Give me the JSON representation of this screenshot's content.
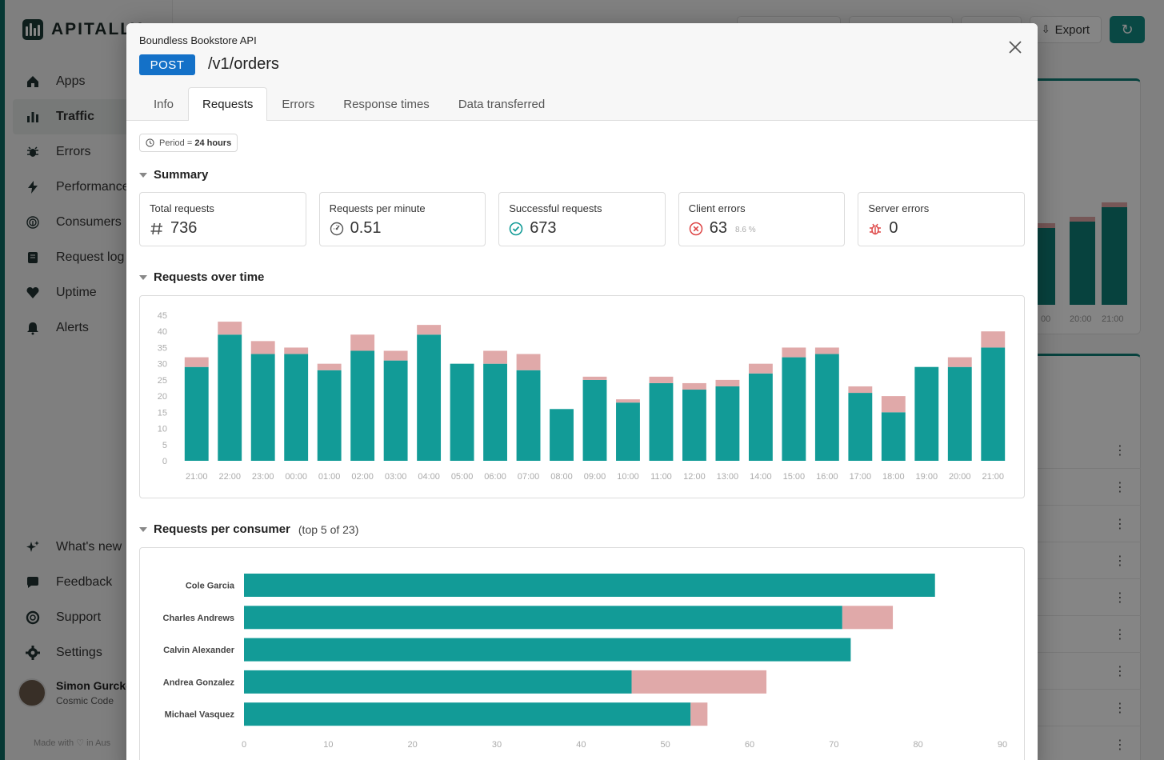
{
  "app": {
    "logo": "APITALLY",
    "nav": [
      {
        "label": "Apps",
        "icon": "home-icon"
      },
      {
        "label": "Traffic",
        "icon": "bar-chart-icon",
        "active": true
      },
      {
        "label": "Errors",
        "icon": "bug-icon"
      },
      {
        "label": "Performance",
        "icon": "bolt-icon"
      },
      {
        "label": "Consumers",
        "icon": "fingerprint-icon"
      },
      {
        "label": "Request log",
        "icon": "log-icon"
      },
      {
        "label": "Uptime",
        "icon": "heartbeat-icon"
      },
      {
        "label": "Alerts",
        "icon": "bell-icon"
      }
    ],
    "nav_bottom": [
      {
        "label": "What's new",
        "icon": "sparkles-icon"
      },
      {
        "label": "Feedback",
        "icon": "chat-icon"
      },
      {
        "label": "Support",
        "icon": "lifebuoy-icon"
      },
      {
        "label": "Settings",
        "icon": "gear-icon"
      }
    ],
    "user": {
      "name": "Simon Gurcke",
      "org": "Cosmic Code"
    },
    "made_with": "Made with ♡ in Aus",
    "export_label": "Export",
    "bg_chart_labels": [
      "00",
      "20:00",
      "21:00"
    ]
  },
  "modal": {
    "api_name": "Boundless Bookstore API",
    "method": "POST",
    "path": "/v1/orders",
    "tabs": [
      "Info",
      "Requests",
      "Errors",
      "Response times",
      "Data transferred"
    ],
    "active_tab": "Requests",
    "period_label": "Period = ",
    "period_value": "24 hours",
    "sections": {
      "summary": "Summary",
      "requests_over_time": "Requests over time",
      "requests_per_consumer": "Requests per consumer",
      "requests_per_consumer_sub": "(top 5 of 23)"
    },
    "stats": [
      {
        "label": "Total requests",
        "value": "736",
        "icon": "hash-icon",
        "suffix": ""
      },
      {
        "label": "Requests per minute",
        "value": "0.51",
        "icon": "gauge-icon",
        "suffix": ""
      },
      {
        "label": "Successful requests",
        "value": "673",
        "icon": "check-circle-icon",
        "suffix": ""
      },
      {
        "label": "Client errors",
        "value": "63",
        "icon": "x-circle-icon",
        "suffix": "8.6 %"
      },
      {
        "label": "Server errors",
        "value": "0",
        "icon": "bug-icon",
        "suffix": ""
      }
    ]
  },
  "colors": {
    "success": "#129b97",
    "error": "#e0a9a9",
    "method": "#1471c8"
  },
  "chart_data": [
    {
      "type": "bar",
      "stacked": true,
      "title": "Requests over time",
      "categories": [
        "21:00",
        "22:00",
        "23:00",
        "00:00",
        "01:00",
        "02:00",
        "03:00",
        "04:00",
        "05:00",
        "06:00",
        "07:00",
        "08:00",
        "09:00",
        "10:00",
        "11:00",
        "12:00",
        "13:00",
        "14:00",
        "15:00",
        "16:00",
        "17:00",
        "18:00",
        "19:00",
        "20:00",
        "21:00"
      ],
      "series": [
        {
          "name": "Successful",
          "values": [
            29,
            39,
            33,
            33,
            28,
            34,
            31,
            39,
            30,
            30,
            28,
            16,
            25,
            18,
            24,
            22,
            23,
            27,
            32,
            33,
            21,
            15,
            29,
            29,
            35
          ]
        },
        {
          "name": "Client errors",
          "values": [
            3,
            4,
            4,
            2,
            2,
            5,
            3,
            3,
            0,
            4,
            5,
            0,
            1,
            1,
            2,
            2,
            2,
            3,
            3,
            2,
            2,
            5,
            0,
            3,
            5
          ]
        }
      ],
      "ylim": [
        0,
        45
      ],
      "yticks": [
        0,
        5,
        10,
        15,
        20,
        25,
        30,
        35,
        40,
        45
      ]
    },
    {
      "type": "bar",
      "orientation": "horizontal",
      "stacked": true,
      "title": "Requests per consumer",
      "categories": [
        "Cole Garcia",
        "Charles Andrews",
        "Calvin Alexander",
        "Andrea Gonzalez",
        "Michael Vasquez"
      ],
      "series": [
        {
          "name": "Successful",
          "values": [
            82,
            71,
            72,
            46,
            53
          ]
        },
        {
          "name": "Client errors",
          "values": [
            0,
            6,
            0,
            16,
            2
          ]
        }
      ],
      "xlim": [
        0,
        90
      ],
      "xticks": [
        0,
        10,
        20,
        30,
        40,
        50,
        60,
        70,
        80,
        90
      ]
    }
  ]
}
